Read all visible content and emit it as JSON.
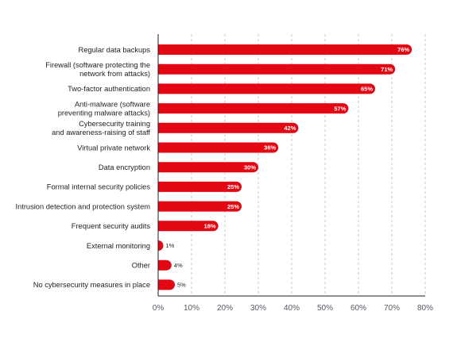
{
  "chart_data": {
    "type": "bar",
    "orientation": "horizontal",
    "categories": [
      [
        "Regular data backups"
      ],
      [
        "Firewall (software protecting the",
        "network from attacks)"
      ],
      [
        "Two-factor authentication"
      ],
      [
        "Anti-malware (software",
        "preventing malware attacks)"
      ],
      [
        "Cybersecurity training",
        "and awareness-raising of staff"
      ],
      [
        "Virtual private network"
      ],
      [
        "Data encryption"
      ],
      [
        "Formal internal security policies"
      ],
      [
        "Intrusion detection and protection system"
      ],
      [
        "Frequent security audits"
      ],
      [
        "External monitoring"
      ],
      [
        "Other"
      ],
      [
        "No cybersecurity measures in place"
      ]
    ],
    "values": [
      76,
      71,
      65,
      57,
      42,
      36,
      30,
      25,
      25,
      18,
      1,
      4,
      5
    ],
    "value_labels": [
      "76%",
      "71%",
      "65%",
      "57%",
      "42%",
      "36%",
      "30%",
      "25%",
      "25%",
      "18%",
      "1%",
      "4%",
      "5%"
    ],
    "xlim": [
      0,
      80
    ],
    "xticks": [
      0,
      10,
      20,
      30,
      40,
      50,
      60,
      70,
      80
    ],
    "xtick_labels": [
      "0%",
      "10%",
      "20%",
      "30%",
      "40%",
      "50%",
      "60%",
      "70%",
      "80%"
    ],
    "grid": "vertical-dashed",
    "bar_color": "#e30613",
    "title": "",
    "xlabel": "",
    "ylabel": ""
  }
}
